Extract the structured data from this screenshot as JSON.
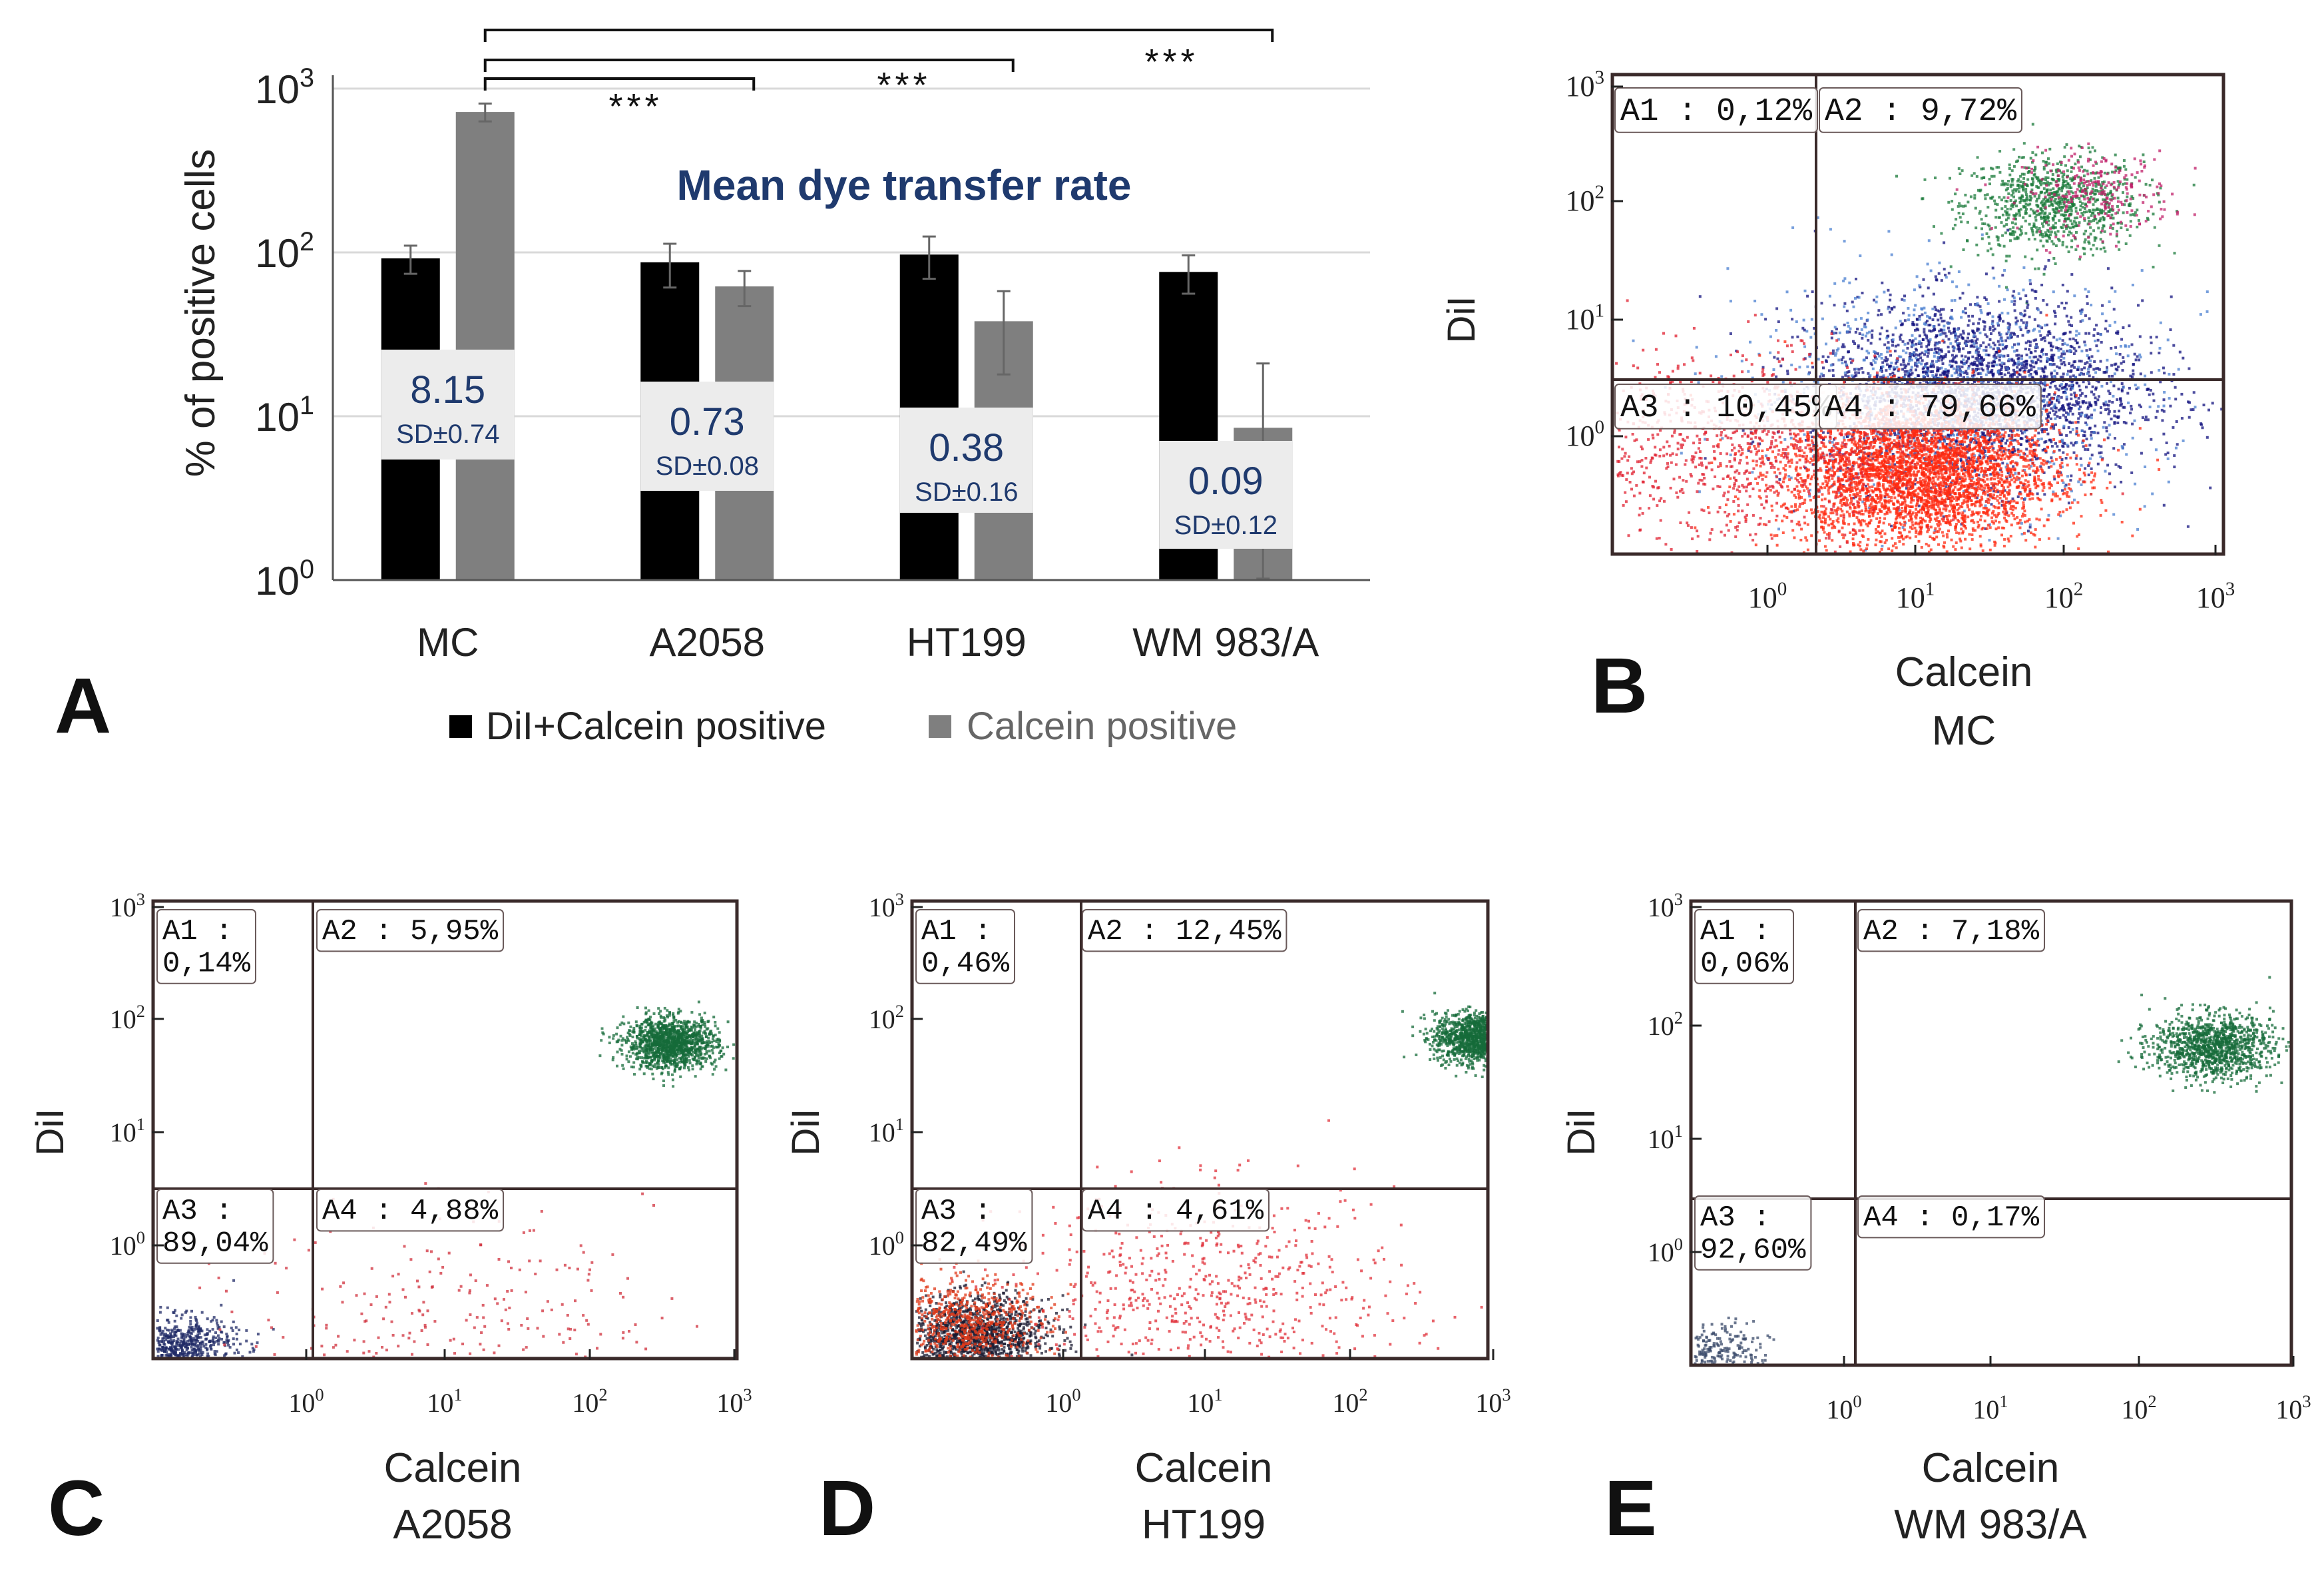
{
  "chart_data": [
    {
      "panel": "A",
      "type": "bar",
      "title": "Mean dye transfer rate",
      "ylabel": "% of positive cells",
      "yscale": "log",
      "ylim": [
        1,
        1000
      ],
      "yticks": [
        {
          "value": 1,
          "base": "10",
          "exp": "0"
        },
        {
          "value": 10,
          "base": "10",
          "exp": "1"
        },
        {
          "value": 100,
          "base": "10",
          "exp": "2"
        },
        {
          "value": 1000,
          "base": "10",
          "exp": "3"
        }
      ],
      "categories": [
        "MC",
        "A2058",
        "HT199",
        "WM 983/A"
      ],
      "series": [
        {
          "name": "DiI+Calcein positive",
          "color": "#000000",
          "values": [
            92,
            87,
            97,
            76
          ],
          "errors": [
            18,
            26,
            28,
            20
          ]
        },
        {
          "name": "Calcein positive",
          "color": "#7f7f7f",
          "values": [
            720,
            62,
            38,
            8.5
          ],
          "errors": [
            90,
            15,
            20,
            12.5
          ]
        }
      ],
      "rates": [
        {
          "value": "8.15",
          "sd": "SD±0.74"
        },
        {
          "value": "0.73",
          "sd": "SD±0.08"
        },
        {
          "value": "0.38",
          "sd": "SD±0.16"
        },
        {
          "value": "0.09",
          "sd": "SD±0.12"
        }
      ],
      "significance": [
        {
          "from": "MC",
          "to": "A2058",
          "label": "***"
        },
        {
          "from": "MC",
          "to": "HT199",
          "label": "***"
        },
        {
          "from": "MC",
          "to": "WM 983/A",
          "label": "***"
        }
      ],
      "legend": "bottom-center"
    },
    {
      "panel": "B",
      "type": "scatter",
      "sample": "MC",
      "xlabel": "Calcein",
      "ylabel": "DiI",
      "quadrants": [
        {
          "id": "A1",
          "label": "A1 : 0,12%"
        },
        {
          "id": "A2",
          "label": "A2 : 9,72%"
        },
        {
          "id": "A3",
          "label": "A3 : 10,45%"
        },
        {
          "id": "A4",
          "label": "A4 : 79,66%"
        }
      ],
      "clusters": [
        {
          "color": "#1a7a3a",
          "calcein_log": 1.9,
          "dil_log": 2.0,
          "spread": 0.3,
          "count": 900
        },
        {
          "color": "#c0206a",
          "calcein_log": 2.2,
          "dil_log": 2.1,
          "spread": 0.25,
          "count": 250
        },
        {
          "color": "#11127f",
          "calcein_log": 1.4,
          "dil_log": 0.4,
          "spread": 0.55,
          "count": 2600
        },
        {
          "color": "#4a7fd0",
          "calcein_log": 1.2,
          "dil_log": 0.4,
          "spread": 0.7,
          "count": 900
        },
        {
          "color": "#ff2a10",
          "calcein_log": 1.0,
          "dil_log": -0.3,
          "spread": 0.45,
          "count": 3800
        },
        {
          "color": "#e02030",
          "calcein_log": -0.2,
          "dil_log": -0.1,
          "spread": 0.6,
          "count": 900
        }
      ]
    },
    {
      "panel": "C",
      "type": "scatter",
      "sample": "A2058",
      "xlabel": "Calcein",
      "ylabel": "DiI",
      "quadrants": [
        {
          "id": "A1",
          "label": "A1 :|0,14%"
        },
        {
          "id": "A2",
          "label": "A2 : 5,95%"
        },
        {
          "id": "A3",
          "label": "A3 :|89,04%"
        },
        {
          "id": "A4",
          "label": "A4 : 4,88%"
        }
      ],
      "clusters": [
        {
          "color": "#156b3a",
          "calcein_log": 2.55,
          "dil_log": 1.8,
          "spread": 0.16,
          "count": 1300
        },
        {
          "color": "#1f2a66",
          "calcein_log": -0.9,
          "dil_log": -0.9,
          "spread": 0.2,
          "count": 700
        },
        {
          "color": "#d0303c",
          "calcein_log": 1.0,
          "dil_log": -0.7,
          "spread": 0.7,
          "count": 300
        }
      ]
    },
    {
      "panel": "D",
      "type": "scatter",
      "sample": "HT199",
      "xlabel": "Calcein",
      "ylabel": "DiI",
      "quadrants": [
        {
          "id": "A1",
          "label": "A1 :|0,46%"
        },
        {
          "id": "A2",
          "label": "A2 : 12,45%"
        },
        {
          "id": "A3",
          "label": "A3 :|82,49%"
        },
        {
          "id": "A4",
          "label": "A4 : 4,61%"
        }
      ],
      "clusters": [
        {
          "color": "#156b3a",
          "calcein_log": 2.9,
          "dil_log": 1.85,
          "spread": 0.16,
          "count": 1400
        },
        {
          "color": "#1a1a30",
          "calcein_log": -0.6,
          "dil_log": -0.8,
          "spread": 0.25,
          "count": 1300
        },
        {
          "color": "#e03a1a",
          "calcein_log": -0.7,
          "dil_log": -0.7,
          "spread": 0.3,
          "count": 700
        },
        {
          "color": "#e0303a",
          "calcein_log": 1.0,
          "dil_log": -0.5,
          "spread": 0.7,
          "count": 700
        }
      ]
    },
    {
      "panel": "E",
      "type": "scatter",
      "sample": "WM 983/A",
      "xlabel": "Calcein",
      "ylabel": "DiI",
      "quadrants": [
        {
          "id": "A1",
          "label": "A1 :|0,06%"
        },
        {
          "id": "A2",
          "label": "A2 : 7,18%"
        },
        {
          "id": "A3",
          "label": "A3 :|92,60%"
        },
        {
          "id": "A4",
          "label": "A4 : 0,17%"
        }
      ],
      "clusters": [
        {
          "color": "#156b3a",
          "calcein_log": 2.45,
          "dil_log": 1.8,
          "spread": 0.2,
          "count": 1100
        },
        {
          "color": "#3a4a6a",
          "calcein_log": -0.9,
          "dil_log": -0.9,
          "spread": 0.2,
          "count": 350
        }
      ]
    }
  ],
  "panel_letters": [
    "A",
    "B",
    "C",
    "D",
    "E"
  ],
  "flow_ticks": [
    {
      "base": "10",
      "exp": "0"
    },
    {
      "base": "10",
      "exp": "1"
    },
    {
      "base": "10",
      "exp": "2"
    },
    {
      "base": "10",
      "exp": "3"
    }
  ],
  "colors": {
    "bar_dark": "#000000",
    "bar_grey": "#7f7f7f",
    "rate_box": "#ececec",
    "rate_text": "#1f3a6e",
    "title": "#1f3a6e"
  }
}
